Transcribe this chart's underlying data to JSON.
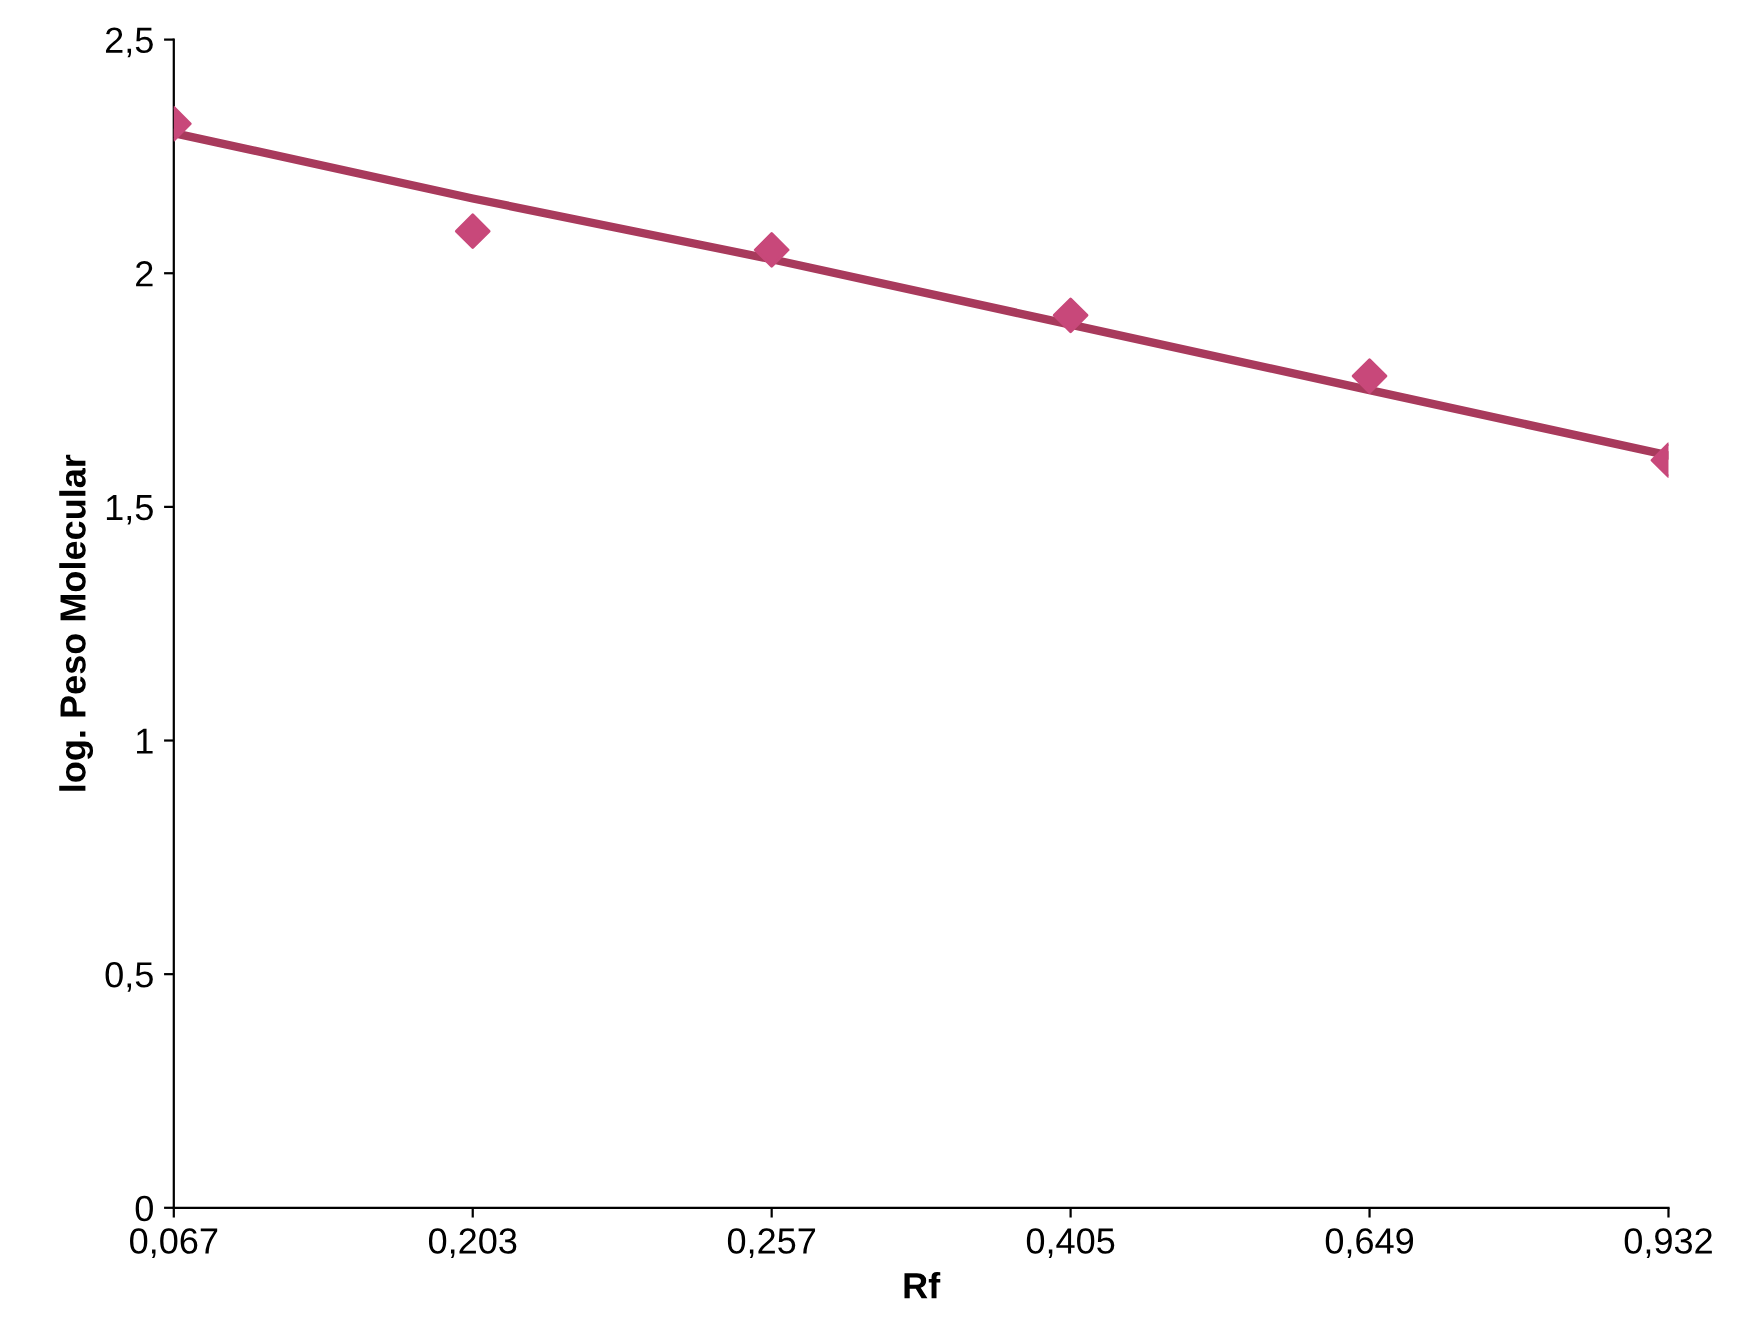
{
  "chart_data": {
    "type": "scatter",
    "xlabel": "Rf",
    "ylabel": "log. Peso Molecular",
    "categories": [
      "0,067",
      "0,203",
      "0,257",
      "0,405",
      "0,649",
      "0,932"
    ],
    "series": [
      {
        "color": "#c8487a",
        "marker": "diamond",
        "values": [
          2.32,
          2.09,
          2.05,
          1.91,
          1.78,
          1.6
        ]
      },
      {
        "type": "line",
        "color": "#a83a5c",
        "marker": "none",
        "line_style": "solid",
        "values": [
          2.3,
          2.16,
          2.03,
          1.89,
          1.75,
          1.61
        ]
      }
    ],
    "ylim": [
      0,
      2.5
    ],
    "yticks": [
      {
        "value": 0,
        "label": "0"
      },
      {
        "value": 0.5,
        "label": "0,5"
      },
      {
        "value": 1,
        "label": "1"
      },
      {
        "value": 1.5,
        "label": "1,5"
      },
      {
        "value": 2,
        "label": "2"
      },
      {
        "value": 2.5,
        "label": "2,5"
      }
    ],
    "grid": false,
    "legend": false
  }
}
